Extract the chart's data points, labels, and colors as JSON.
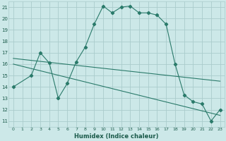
{
  "title": "",
  "xlabel": "Humidex (Indice chaleur)",
  "bg_color": "#cce8e8",
  "grid_color": "#aacccc",
  "line_color": "#2a7a6a",
  "xlim": [
    -0.5,
    23.5
  ],
  "ylim": [
    10.5,
    21.5
  ],
  "xtick_labels": [
    "0",
    "1",
    "2",
    "3",
    "4",
    "5",
    "6",
    "7",
    "8",
    "9",
    "10",
    "11",
    "12",
    "13",
    "14",
    "15",
    "16",
    "17",
    "18",
    "19",
    "20",
    "21",
    "22",
    "23"
  ],
  "ytick_labels": [
    "11",
    "12",
    "13",
    "14",
    "15",
    "16",
    "17",
    "18",
    "19",
    "20",
    "21"
  ],
  "series_main": [
    [
      0,
      14.0
    ],
    [
      2,
      15.0
    ],
    [
      3,
      17.0
    ],
    [
      4,
      16.1
    ],
    [
      5,
      13.0
    ],
    [
      6,
      14.3
    ],
    [
      7,
      16.2
    ],
    [
      8,
      17.5
    ],
    [
      9,
      19.5
    ],
    [
      10,
      21.1
    ],
    [
      11,
      20.5
    ],
    [
      12,
      21.0
    ],
    [
      13,
      21.1
    ],
    [
      14,
      20.5
    ],
    [
      15,
      20.5
    ],
    [
      16,
      20.3
    ],
    [
      17,
      19.5
    ],
    [
      18,
      16.0
    ],
    [
      19,
      13.3
    ],
    [
      20,
      12.7
    ],
    [
      21,
      12.5
    ],
    [
      22,
      11.0
    ],
    [
      23,
      12.0
    ]
  ],
  "series_line1": [
    [
      0,
      16.5
    ],
    [
      23,
      14.5
    ]
  ],
  "series_line2": [
    [
      0,
      16.0
    ],
    [
      23,
      11.5
    ]
  ]
}
